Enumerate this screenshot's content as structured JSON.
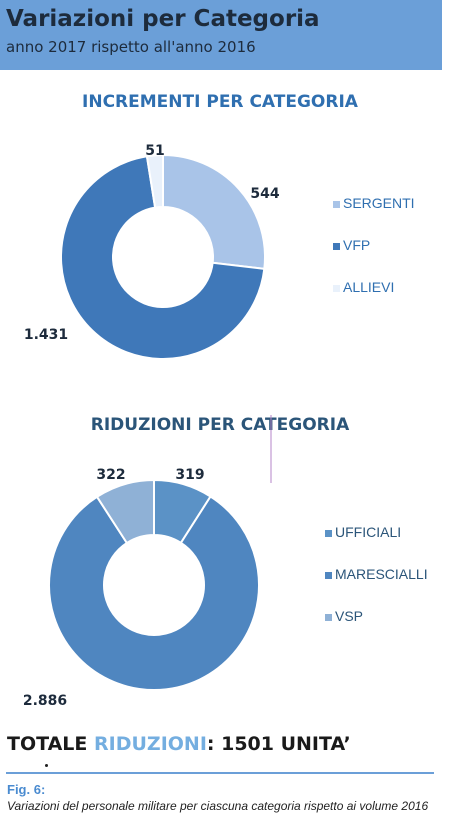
{
  "header": {
    "title": "Variazioni per Categoria",
    "subtitle": "anno 2017 rispetto all'anno 2016"
  },
  "chart_data": [
    {
      "type": "pie",
      "title": "INCREMENTI PER CATEGORIA",
      "donut": true,
      "legend_position": "right",
      "slices": [
        {
          "name": "SERGENTI",
          "value": 544,
          "label": "544",
          "color": "#a9c4e8"
        },
        {
          "name": "VFP",
          "value": 1431,
          "label": "1.431",
          "color": "#3f78b9"
        },
        {
          "name": "ALLIEVI",
          "value": 51,
          "label": "51",
          "color": "#e9f1fb"
        }
      ]
    },
    {
      "type": "pie",
      "title": "RIDUZIONI PER CATEGORIA",
      "donut": true,
      "legend_position": "right",
      "slices": [
        {
          "name": "UFFICIALI",
          "value": 319,
          "label": "319",
          "color": "#5b92c6"
        },
        {
          "name": "MARESCIALLI",
          "value": 2886,
          "label": "2.886",
          "color": "#4f86c0"
        },
        {
          "name": "VSP",
          "value": 322,
          "label": "322",
          "color": "#8fb1d6"
        }
      ]
    }
  ],
  "total": {
    "prefix": "TOTALE",
    "accent": "RIDUZIONI",
    "suffix": ": 1501 UNITA’"
  },
  "figure": {
    "label": "Fig. 6:",
    "caption": "Variazioni del personale militare per ciascuna categoria rispetto ai volume 2016"
  },
  "colors": {
    "header_bg": "#6b9fd8",
    "title1": "#2f6fb0",
    "title2": "#2b5579",
    "accent": "#74aee0"
  }
}
